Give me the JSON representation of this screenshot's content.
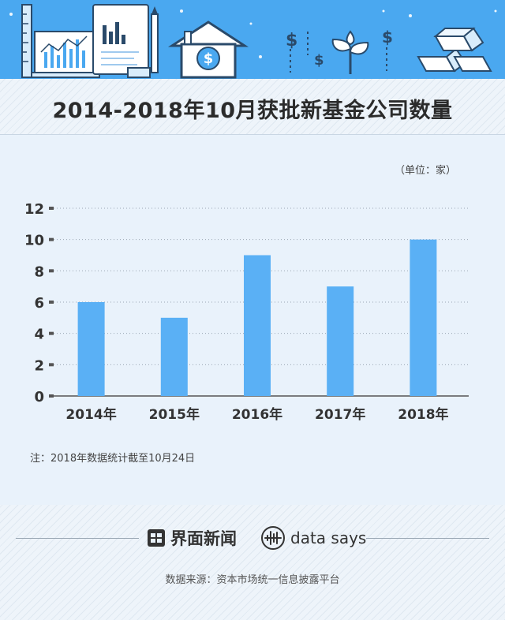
{
  "header": {
    "title": "2014-2018年10月获批新基金公司数量"
  },
  "chart_data": {
    "type": "bar",
    "unit_label": "（单位：家）",
    "categories": [
      "2014年",
      "2015年",
      "2016年",
      "2017年",
      "2018年"
    ],
    "values": [
      6,
      5,
      9,
      7,
      10
    ],
    "ylim": [
      0,
      12
    ],
    "yticks": [
      0,
      2,
      4,
      6,
      8,
      10,
      12
    ],
    "bar_color": "#5ab0f5",
    "grid": "dotted-horizontal",
    "legend": "none"
  },
  "note": "注：2018年数据统计截至10月24日",
  "footer": {
    "brand_cn": "界面新闻",
    "brand_en": "data says",
    "source": "数据来源：资本市场统一信息披露平台"
  },
  "colors": {
    "banner": "#4aa8f0",
    "background": "#e9f2fb",
    "bar": "#5ab0f5",
    "text": "#333333"
  },
  "icons": [
    "ruler-icon",
    "laptop-chart-icon",
    "document-chart-icon",
    "pencil-icon",
    "house-dollar-icon",
    "dollar-sign-icon",
    "plant-icon",
    "gold-bars-icon",
    "jiemian-logo-icon",
    "data-says-logo-icon"
  ]
}
